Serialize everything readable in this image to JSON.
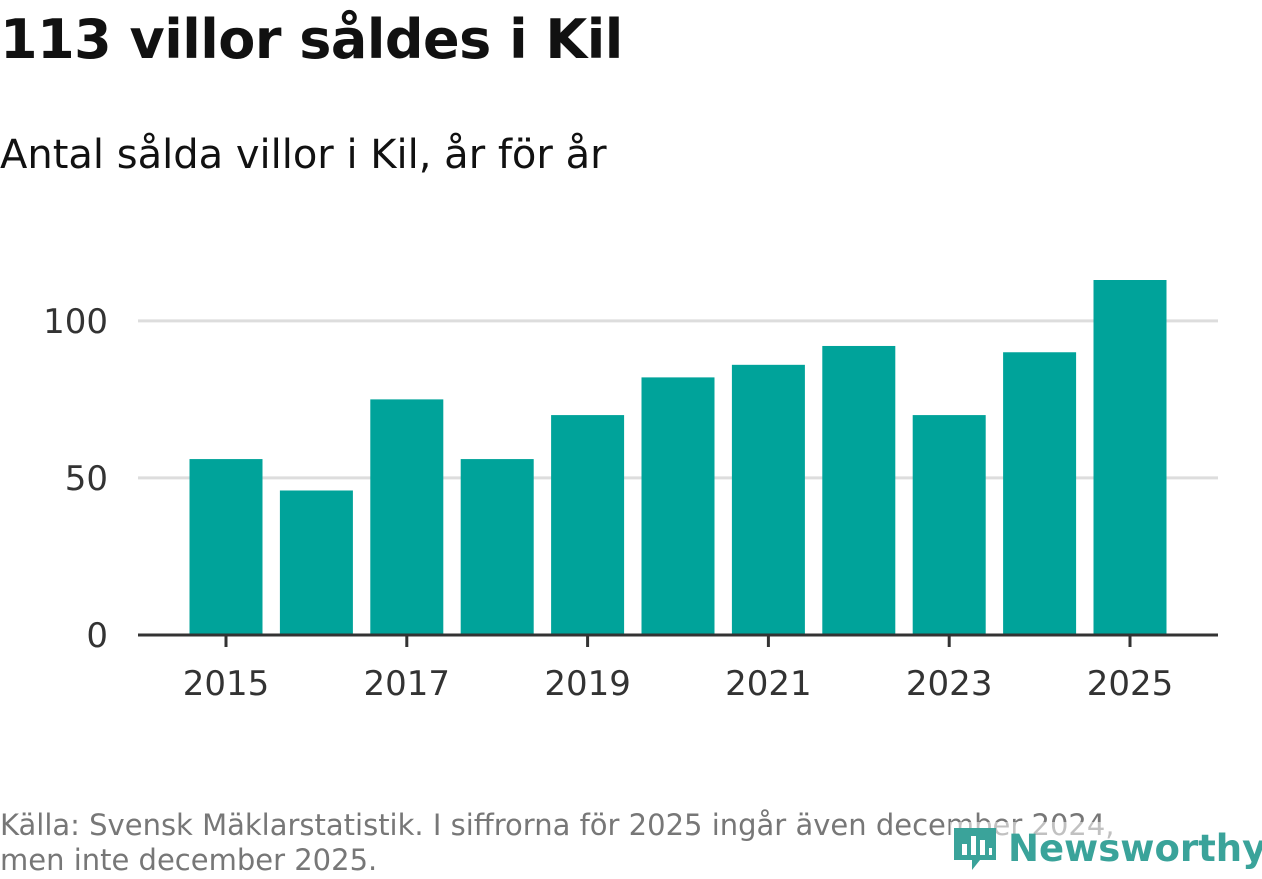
{
  "header": {
    "title": "113 villor såldes i Kil",
    "subtitle": "Antal sålda villor i Kil, år för år"
  },
  "footer": {
    "source_line1": "Källa: Svensk Mäklarstatistik. I siffrorna för 2025 ingår även december 2024,",
    "source_line2": "men inte december 2025.",
    "brand": "Newsworthy"
  },
  "colors": {
    "bar": "#00a39a",
    "grid": "#dddddd",
    "axis": "#333333",
    "tick_text": "#333333",
    "brand": "#3aa39a"
  },
  "chart_data": {
    "type": "bar",
    "title": "113 villor såldes i Kil",
    "subtitle": "Antal sålda villor i Kil, år för år",
    "xlabel": "",
    "ylabel": "",
    "categories": [
      "2015",
      "2016",
      "2017",
      "2018",
      "2019",
      "2020",
      "2021",
      "2022",
      "2023",
      "2024",
      "2025"
    ],
    "values": [
      56,
      46,
      75,
      56,
      70,
      82,
      86,
      92,
      70,
      90,
      113
    ],
    "x_tick_labels": [
      "2015",
      "2017",
      "2019",
      "2021",
      "2023",
      "2025"
    ],
    "y_ticks": [
      0,
      50,
      100
    ],
    "ylim": [
      0,
      113
    ],
    "grid": true
  }
}
